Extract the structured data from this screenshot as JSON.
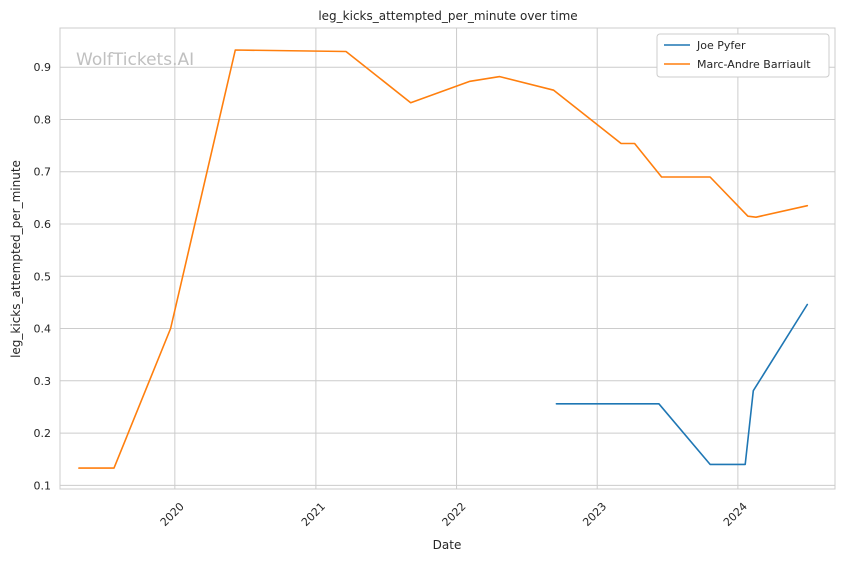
{
  "chart_data": {
    "type": "line",
    "title": "leg_kicks_attempted_per_minute over time",
    "xlabel": "Date",
    "ylabel": "leg_kicks_attempted_per_minute",
    "watermark": "WolfTickets.AI",
    "x_ticks": [
      "2020",
      "2021",
      "2022",
      "2023",
      "2024"
    ],
    "y_ticks": [
      "0.1",
      "0.2",
      "0.3",
      "0.4",
      "0.5",
      "0.6",
      "0.7",
      "0.8",
      "0.9"
    ],
    "xlim": [
      "2019-03-09",
      "2024-09-09"
    ],
    "ylim": [
      0.093,
      0.975
    ],
    "grid": true,
    "legend_position": "top-right",
    "series": [
      {
        "name": "Joe Pyfer",
        "color": "#1f77b4",
        "points": [
          {
            "x": "2022-09-17",
            "y": 0.256
          },
          {
            "x": "2023-06-10",
            "y": 0.256
          },
          {
            "x": "2023-10-21",
            "y": 0.14
          },
          {
            "x": "2024-01-20",
            "y": 0.14
          },
          {
            "x": "2024-02-10",
            "y": 0.281
          },
          {
            "x": "2024-06-29",
            "y": 0.446
          }
        ]
      },
      {
        "name": "Marc-Andre Barriault",
        "color": "#ff7f0e",
        "points": [
          {
            "x": "2019-04-27",
            "y": 0.133
          },
          {
            "x": "2019-07-27",
            "y": 0.133
          },
          {
            "x": "2019-12-21",
            "y": 0.4
          },
          {
            "x": "2020-06-06",
            "y": 0.933
          },
          {
            "x": "2021-03-20",
            "y": 0.93
          },
          {
            "x": "2021-09-04",
            "y": 0.832
          },
          {
            "x": "2022-02-05",
            "y": 0.873
          },
          {
            "x": "2022-04-23",
            "y": 0.882
          },
          {
            "x": "2022-09-10",
            "y": 0.856
          },
          {
            "x": "2023-03-04",
            "y": 0.754
          },
          {
            "x": "2023-04-08",
            "y": 0.754
          },
          {
            "x": "2023-06-17",
            "y": 0.69
          },
          {
            "x": "2023-10-21",
            "y": 0.69
          },
          {
            "x": "2024-01-27",
            "y": 0.615
          },
          {
            "x": "2024-02-17",
            "y": 0.613
          },
          {
            "x": "2024-06-29",
            "y": 0.635
          }
        ]
      }
    ]
  }
}
